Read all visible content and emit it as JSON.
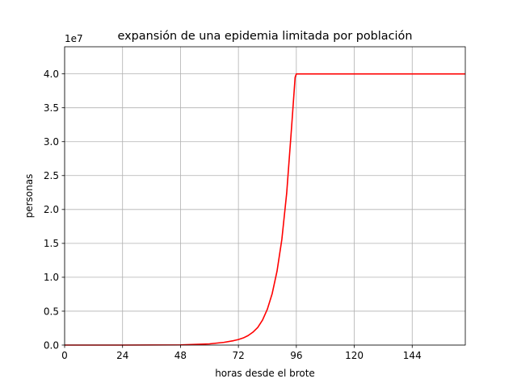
{
  "chart_data": {
    "type": "line",
    "title": "expansión de una epidemia limitada por población",
    "xlabel": "horas desde el brote",
    "ylabel": "personas",
    "y_offset_label": "1e7",
    "xlim": [
      0,
      166
    ],
    "ylim": [
      0,
      4.4
    ],
    "x_ticks": [
      0,
      24,
      48,
      72,
      96,
      120,
      144
    ],
    "x_tick_labels": [
      "0",
      "24",
      "48",
      "72",
      "96",
      "120",
      "144"
    ],
    "y_ticks": [
      0,
      0.5,
      1.0,
      1.5,
      2.0,
      2.5,
      3.0,
      3.5,
      4.0
    ],
    "y_tick_labels": [
      "0.0",
      "0.5",
      "1.0",
      "1.5",
      "2.0",
      "2.5",
      "3.0",
      "3.5",
      "4.0"
    ],
    "grid": true,
    "line_color": "#ff0000",
    "series": [
      {
        "x": [
          0,
          24,
          48,
          60,
          66,
          70,
          72,
          74,
          76,
          78,
          80,
          82,
          84,
          86,
          88,
          90,
          92,
          94,
          95,
          95.5,
          96,
          100,
          120,
          144,
          166
        ],
        "y": [
          0,
          0,
          0.003,
          0.018,
          0.04,
          0.065,
          0.082,
          0.105,
          0.14,
          0.19,
          0.26,
          0.37,
          0.53,
          0.76,
          1.09,
          1.56,
          2.24,
          3.2,
          3.7,
          3.95,
          4.0,
          4.0,
          4.0,
          4.0,
          4.0
        ]
      }
    ]
  }
}
